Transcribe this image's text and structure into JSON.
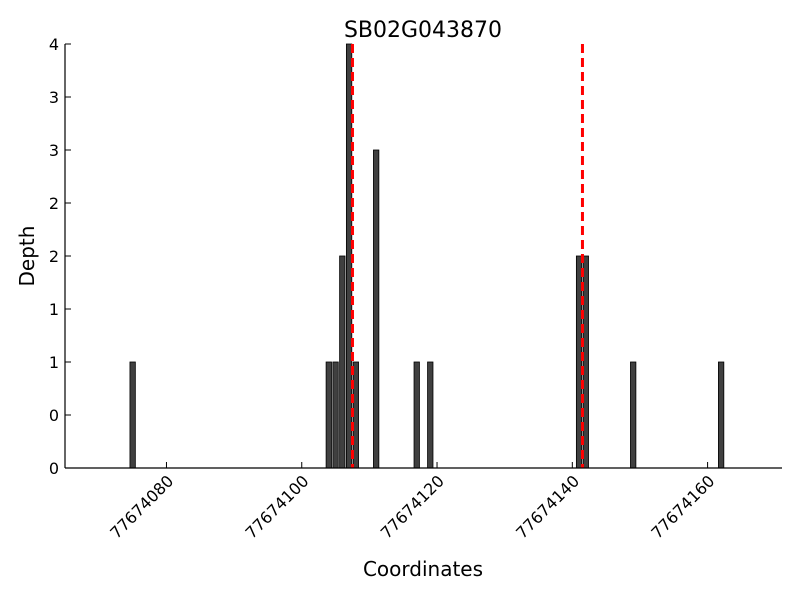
{
  "chart_data": {
    "type": "bar",
    "title": "SB02G043870",
    "xlabel": "Coordinates",
    "ylabel": "Depth",
    "xlim": [
      77674065,
      77674171
    ],
    "ylim": [
      0,
      4
    ],
    "grid": false,
    "x_ticks": [
      77674080,
      77674100,
      77674120,
      77674140,
      77674160
    ],
    "y_tick_labels": [
      "0",
      "0",
      "1",
      "1",
      "2",
      "2",
      "3",
      "3",
      "4"
    ],
    "bar_color": "#404040",
    "line_color": "#ff0000",
    "bars": [
      {
        "x": 77674075,
        "depth": 1
      },
      {
        "x": 77674104,
        "depth": 1
      },
      {
        "x": 77674105,
        "depth": 1
      },
      {
        "x": 77674106,
        "depth": 2
      },
      {
        "x": 77674107,
        "depth": 4
      },
      {
        "x": 77674108,
        "depth": 1
      },
      {
        "x": 77674111,
        "depth": 3
      },
      {
        "x": 77674117,
        "depth": 1
      },
      {
        "x": 77674119,
        "depth": 1
      },
      {
        "x": 77674141,
        "depth": 2
      },
      {
        "x": 77674142,
        "depth": 2
      },
      {
        "x": 77674149,
        "depth": 1
      },
      {
        "x": 77674162,
        "depth": 1
      }
    ],
    "reference_lines": [
      77674107.5,
      77674141.5
    ]
  }
}
